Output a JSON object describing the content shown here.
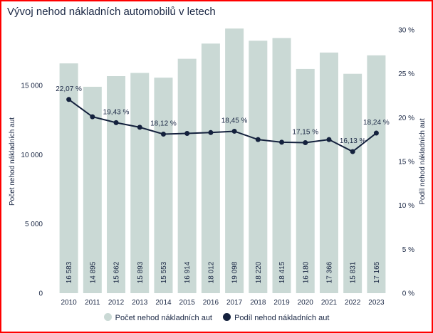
{
  "title": "Vývoj nehod nákladních automobilů v letech",
  "colors": {
    "bar": "#cad9d5",
    "line": "#14213d",
    "frame": "#ff0000",
    "text": "#1a2744"
  },
  "chart_data": {
    "type": "bar",
    "title": "Vývoj nehod nákladních automobilů v letech",
    "categories": [
      "2010",
      "2011",
      "2012",
      "2013",
      "2014",
      "2015",
      "2016",
      "2017",
      "2018",
      "2019",
      "2020",
      "2021",
      "2022",
      "2023"
    ],
    "ylabel": "Počet nehod nákladních aut",
    "y2label": "Podíl nehod nákladních aut",
    "ylim": [
      0,
      19000
    ],
    "y2lim": [
      0,
      30
    ],
    "yticks": [
      "0",
      "5 000",
      "10 000",
      "15 000"
    ],
    "y2ticks": [
      "0 %",
      "5 %",
      "10 %",
      "15 %",
      "20 %",
      "25 %",
      "30 %"
    ],
    "series": [
      {
        "name": "Počet nehod nákladních aut",
        "type": "bar",
        "values": [
          16583,
          14895,
          15662,
          15893,
          15553,
          16914,
          18012,
          19098,
          18220,
          18415,
          16180,
          17366,
          15831,
          17165
        ],
        "labels": [
          "16 583",
          "14 895",
          "15 662",
          "15 893",
          "15 553",
          "16 914",
          "18 012",
          "19 098",
          "18 220",
          "18 415",
          "16 180",
          "17 366",
          "15 831",
          "17 165"
        ]
      },
      {
        "name": "Podíl nehod nákladních aut",
        "type": "line",
        "values": [
          22.07,
          20.1,
          19.43,
          18.9,
          18.12,
          18.2,
          18.3,
          18.45,
          17.5,
          17.2,
          17.15,
          17.5,
          16.13,
          18.24
        ],
        "point_labels": [
          "22,07 %",
          "",
          "19,43 %",
          "",
          "18,12 %",
          "",
          "",
          "18,45 %",
          "",
          "",
          "17,15 %",
          "",
          "16,13 %",
          "18,24 %"
        ]
      }
    ],
    "legend_position": "bottom",
    "grid": false
  }
}
